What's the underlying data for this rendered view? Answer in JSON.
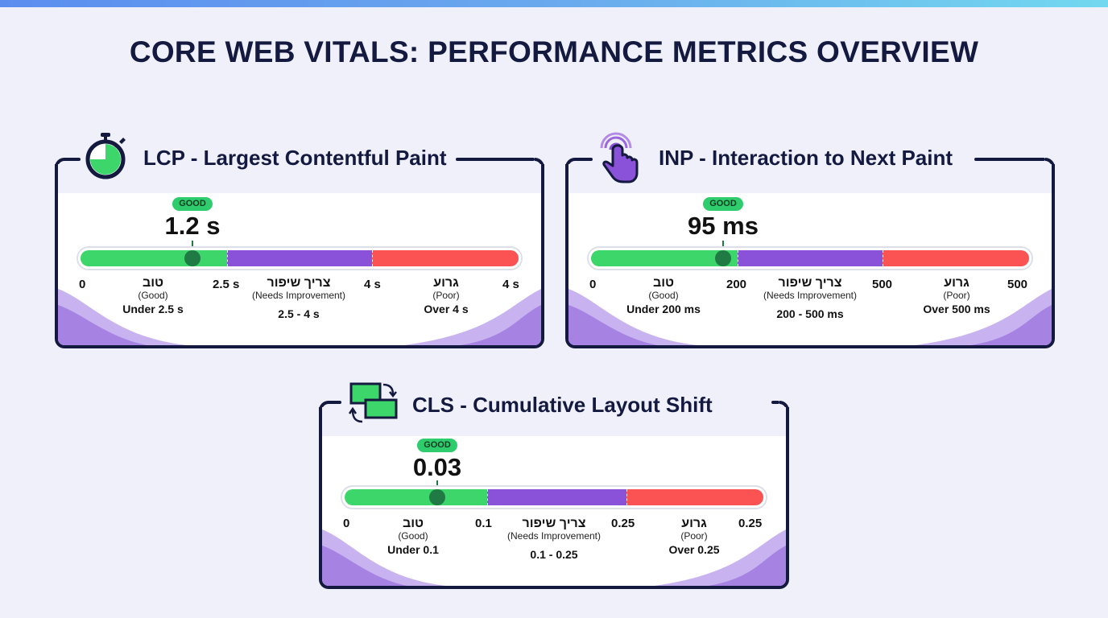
{
  "page": {
    "title": "CORE WEB VITALS: PERFORMANCE METRICS OVERVIEW"
  },
  "colors": {
    "good": "#3dd66a",
    "needs_improvement": "#8a52d8",
    "poor": "#fb5353",
    "badge": "#2fcc6e",
    "frame": "#14193f"
  },
  "cards": [
    {
      "id": "lcp",
      "icon": "stopwatch-icon",
      "title": "LCP - Largest Contentful Paint",
      "badge": "GOOD",
      "value": "1.2 s",
      "pointer_position": 0.26,
      "ticks": [
        "0",
        "2.5 s",
        "4 s",
        "4 s"
      ],
      "zones": [
        {
          "he": "טוב",
          "en": "(Good)",
          "range": "Under 2.5 s"
        },
        {
          "he": "צריך שיפור",
          "en": "(Needs Improvement)",
          "range": "2.5 - 4 s"
        },
        {
          "he": "גרוע",
          "en": "(Poor)",
          "range": "Over 4 s"
        }
      ]
    },
    {
      "id": "inp",
      "icon": "tap-finger-icon",
      "title": "INP - Interaction to Next Paint",
      "badge": "GOOD",
      "value": "95 ms",
      "pointer_position": 0.3,
      "ticks": [
        "0",
        "200",
        "500",
        "500"
      ],
      "zones": [
        {
          "he": "טוב",
          "en": "(Good)",
          "range": "Under 200 ms"
        },
        {
          "he": "צריך שיפור",
          "en": "(Needs Improvement)",
          "range": "200 - 500 ms"
        },
        {
          "he": "גרוע",
          "en": "(Poor)",
          "range": "Over 500 ms"
        }
      ]
    },
    {
      "id": "cls",
      "icon": "layout-shift-icon",
      "title": "CLS - Cumulative Layout Shift",
      "badge": "GOOD",
      "value": "0.03",
      "pointer_position": 0.22,
      "ticks": [
        "0",
        "0.1",
        "0.25",
        "0.25"
      ],
      "zones": [
        {
          "he": "טוב",
          "en": "(Good)",
          "range": "Under 0.1"
        },
        {
          "he": "צריך שיפור",
          "en": "(Needs Improvement)",
          "range": "0.1 - 0.25"
        },
        {
          "he": "גרוע",
          "en": "(Poor)",
          "range": "Over 0.25"
        }
      ]
    }
  ]
}
